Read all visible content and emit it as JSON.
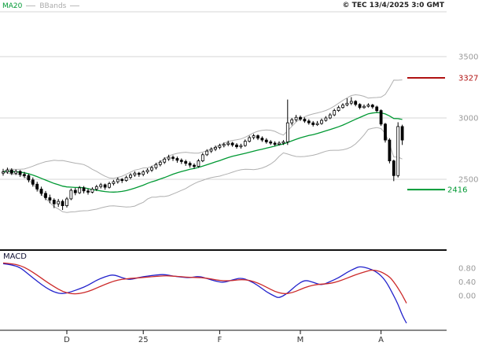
{
  "header": {
    "legend": {
      "ma20": "MA20",
      "bbands": "BBands"
    },
    "copyright": "© TEC 13/4/2025 3:0 GMT"
  },
  "colors": {
    "ma20": "#009933",
    "bbands": "#b0b0b0",
    "candle": "#000000",
    "grid": "#d6d6d6",
    "axis": "#111111",
    "tick_label": "#9a9a9a",
    "month_label": "#333333",
    "resistance": "#b01212",
    "support": "#009933",
    "macd_line": "#2222cc",
    "macd_signal": "#cc2929"
  },
  "chart_data": [
    {
      "type": "candlestick",
      "name": "price",
      "grid": true,
      "legend_position": "top-left",
      "y_ticks": [
        {
          "value": 3500,
          "label": "3500"
        },
        {
          "value": 3000,
          "label": "3000"
        },
        {
          "value": 2500,
          "label": "2500"
        }
      ],
      "x_labels": [
        {
          "label": "D",
          "index": 15
        },
        {
          "label": "25",
          "index": 33
        },
        {
          "label": "F",
          "index": 51
        },
        {
          "label": "M",
          "index": 70
        },
        {
          "label": "A",
          "index": 89
        }
      ],
      "levels": [
        {
          "name": "resistance",
          "value": 3327,
          "label": "3327",
          "color": "#b01212"
        },
        {
          "name": "support",
          "value": 2416,
          "label": "2416",
          "color": "#009933"
        }
      ],
      "overlays": [
        {
          "name": "MA20",
          "period": 20,
          "color": "#009933"
        },
        {
          "name": "BBands",
          "period": 20,
          "stdev_mult": 2,
          "color": "#b0b0b0"
        }
      ],
      "ohlc": [
        [
          2550,
          2585,
          2530,
          2560
        ],
        [
          2560,
          2595,
          2545,
          2575
        ],
        [
          2575,
          2590,
          2535,
          2550
        ],
        [
          2550,
          2580,
          2535,
          2565
        ],
        [
          2565,
          2575,
          2520,
          2540
        ],
        [
          2540,
          2560,
          2510,
          2530
        ],
        [
          2530,
          2545,
          2475,
          2495
        ],
        [
          2495,
          2515,
          2440,
          2460
        ],
        [
          2460,
          2480,
          2400,
          2420
        ],
        [
          2420,
          2440,
          2365,
          2385
        ],
        [
          2385,
          2405,
          2330,
          2350
        ],
        [
          2350,
          2375,
          2305,
          2330
        ],
        [
          2330,
          2345,
          2265,
          2300
        ],
        [
          2300,
          2340,
          2275,
          2320
        ],
        [
          2320,
          2335,
          2250,
          2285
        ],
        [
          2285,
          2355,
          2270,
          2340
        ],
        [
          2340,
          2425,
          2330,
          2410
        ],
        [
          2410,
          2430,
          2370,
          2390
        ],
        [
          2390,
          2445,
          2380,
          2430
        ],
        [
          2430,
          2445,
          2385,
          2405
        ],
        [
          2405,
          2425,
          2375,
          2395
        ],
        [
          2395,
          2435,
          2385,
          2420
        ],
        [
          2420,
          2455,
          2405,
          2440
        ],
        [
          2440,
          2470,
          2425,
          2455
        ],
        [
          2455,
          2465,
          2415,
          2435
        ],
        [
          2435,
          2480,
          2425,
          2465
        ],
        [
          2465,
          2495,
          2450,
          2480
        ],
        [
          2480,
          2515,
          2465,
          2500
        ],
        [
          2500,
          2510,
          2470,
          2490
        ],
        [
          2490,
          2530,
          2480,
          2515
        ],
        [
          2515,
          2550,
          2500,
          2535
        ],
        [
          2535,
          2565,
          2520,
          2550
        ],
        [
          2550,
          2560,
          2520,
          2540
        ],
        [
          2540,
          2575,
          2525,
          2560
        ],
        [
          2560,
          2590,
          2545,
          2575
        ],
        [
          2575,
          2610,
          2560,
          2595
        ],
        [
          2595,
          2635,
          2580,
          2620
        ],
        [
          2620,
          2655,
          2605,
          2640
        ],
        [
          2640,
          2680,
          2625,
          2665
        ],
        [
          2665,
          2700,
          2650,
          2680
        ],
        [
          2680,
          2695,
          2650,
          2670
        ],
        [
          2670,
          2685,
          2635,
          2655
        ],
        [
          2655,
          2670,
          2625,
          2645
        ],
        [
          2645,
          2660,
          2610,
          2630
        ],
        [
          2630,
          2645,
          2595,
          2615
        ],
        [
          2615,
          2630,
          2585,
          2605
        ],
        [
          2605,
          2665,
          2595,
          2650
        ],
        [
          2650,
          2715,
          2640,
          2700
        ],
        [
          2700,
          2745,
          2690,
          2730
        ],
        [
          2730,
          2760,
          2715,
          2745
        ],
        [
          2745,
          2775,
          2730,
          2760
        ],
        [
          2760,
          2790,
          2745,
          2775
        ],
        [
          2775,
          2800,
          2760,
          2785
        ],
        [
          2785,
          2815,
          2770,
          2795
        ],
        [
          2795,
          2805,
          2765,
          2780
        ],
        [
          2780,
          2795,
          2750,
          2765
        ],
        [
          2765,
          2790,
          2750,
          2775
        ],
        [
          2775,
          2825,
          2765,
          2810
        ],
        [
          2810,
          2855,
          2800,
          2840
        ],
        [
          2840,
          2870,
          2825,
          2855
        ],
        [
          2855,
          2865,
          2820,
          2835
        ],
        [
          2835,
          2850,
          2805,
          2820
        ],
        [
          2820,
          2835,
          2790,
          2805
        ],
        [
          2805,
          2820,
          2780,
          2795
        ],
        [
          2795,
          2810,
          2770,
          2785
        ],
        [
          2785,
          2810,
          2775,
          2795
        ],
        [
          2795,
          2820,
          2780,
          2805
        ],
        [
          2805,
          3150,
          2780,
          2960
        ],
        [
          2960,
          3000,
          2940,
          2985
        ],
        [
          2985,
          3025,
          2970,
          3005
        ],
        [
          3005,
          3020,
          2975,
          2990
        ],
        [
          2990,
          3005,
          2960,
          2975
        ],
        [
          2975,
          2990,
          2945,
          2960
        ],
        [
          2960,
          2975,
          2930,
          2945
        ],
        [
          2945,
          2975,
          2935,
          2955
        ],
        [
          2955,
          2995,
          2945,
          2980
        ],
        [
          2980,
          3015,
          2970,
          3000
        ],
        [
          3000,
          3040,
          2990,
          3025
        ],
        [
          3025,
          3075,
          3015,
          3060
        ],
        [
          3060,
          3100,
          3050,
          3085
        ],
        [
          3085,
          3120,
          3075,
          3105
        ],
        [
          3105,
          3160,
          3095,
          3120
        ],
        [
          3120,
          3170,
          3105,
          3135
        ],
        [
          3135,
          3145,
          3095,
          3110
        ],
        [
          3110,
          3120,
          3070,
          3085
        ],
        [
          3085,
          3110,
          3075,
          3095
        ],
        [
          3095,
          3120,
          3085,
          3105
        ],
        [
          3105,
          3115,
          3075,
          3090
        ],
        [
          3090,
          3100,
          3045,
          3060
        ],
        [
          3060,
          3070,
          2935,
          2950
        ],
        [
          2950,
          2960,
          2800,
          2820
        ],
        [
          2820,
          2835,
          2630,
          2650
        ],
        [
          2650,
          2660,
          2485,
          2530
        ],
        [
          2530,
          2965,
          2515,
          2930
        ],
        [
          2930,
          2945,
          2780,
          2820
        ]
      ]
    },
    {
      "type": "line",
      "name": "MACD",
      "grid": false,
      "y_ticks": [
        {
          "value": 0.8,
          "label": "0.80"
        },
        {
          "value": 0.4,
          "label": "0.40"
        },
        {
          "value": 0.0,
          "label": "0.00"
        }
      ],
      "series": [
        {
          "name": "MACD",
          "color": "#2222cc",
          "points": [
            [
              0,
              0.93
            ],
            [
              2,
              0.9
            ],
            [
              4,
              0.82
            ],
            [
              6,
              0.62
            ],
            [
              8,
              0.42
            ],
            [
              10,
              0.24
            ],
            [
              12,
              0.1
            ],
            [
              14,
              0.05
            ],
            [
              16,
              0.11
            ],
            [
              18,
              0.2
            ],
            [
              20,
              0.3
            ],
            [
              22,
              0.45
            ],
            [
              24,
              0.55
            ],
            [
              26,
              0.62
            ],
            [
              28,
              0.52
            ],
            [
              30,
              0.46
            ],
            [
              32,
              0.53
            ],
            [
              34,
              0.57
            ],
            [
              36,
              0.6
            ],
            [
              38,
              0.62
            ],
            [
              40,
              0.57
            ],
            [
              42,
              0.54
            ],
            [
              44,
              0.52
            ],
            [
              46,
              0.57
            ],
            [
              48,
              0.5
            ],
            [
              50,
              0.42
            ],
            [
              52,
              0.38
            ],
            [
              54,
              0.46
            ],
            [
              56,
              0.52
            ],
            [
              58,
              0.44
            ],
            [
              60,
              0.3
            ],
            [
              62,
              0.11
            ],
            [
              64,
              -0.02
            ],
            [
              65,
              -0.07
            ],
            [
              67,
              0.07
            ],
            [
              69,
              0.3
            ],
            [
              71,
              0.46
            ],
            [
              73,
              0.39
            ],
            [
              75,
              0.3
            ],
            [
              77,
              0.41
            ],
            [
              79,
              0.52
            ],
            [
              81,
              0.68
            ],
            [
              83,
              0.8
            ],
            [
              84,
              0.85
            ],
            [
              86,
              0.8
            ],
            [
              88,
              0.69
            ],
            [
              90,
              0.46
            ],
            [
              92,
              0.0
            ],
            [
              93,
              -0.25
            ],
            [
              94,
              -0.57
            ],
            [
              95,
              -0.8
            ]
          ]
        },
        {
          "name": "Signal",
          "color": "#cc2929",
          "points": [
            [
              0,
              0.95
            ],
            [
              2,
              0.93
            ],
            [
              4,
              0.88
            ],
            [
              6,
              0.76
            ],
            [
              8,
              0.6
            ],
            [
              10,
              0.42
            ],
            [
              12,
              0.26
            ],
            [
              14,
              0.12
            ],
            [
              16,
              0.05
            ],
            [
              18,
              0.06
            ],
            [
              20,
              0.12
            ],
            [
              22,
              0.22
            ],
            [
              24,
              0.33
            ],
            [
              26,
              0.42
            ],
            [
              28,
              0.48
            ],
            [
              30,
              0.5
            ],
            [
              32,
              0.52
            ],
            [
              34,
              0.54
            ],
            [
              36,
              0.56
            ],
            [
              38,
              0.58
            ],
            [
              40,
              0.57
            ],
            [
              42,
              0.55
            ],
            [
              44,
              0.53
            ],
            [
              46,
              0.53
            ],
            [
              48,
              0.51
            ],
            [
              50,
              0.46
            ],
            [
              52,
              0.43
            ],
            [
              54,
              0.44
            ],
            [
              56,
              0.47
            ],
            [
              58,
              0.45
            ],
            [
              60,
              0.37
            ],
            [
              62,
              0.25
            ],
            [
              64,
              0.12
            ],
            [
              66,
              0.05
            ],
            [
              68,
              0.08
            ],
            [
              70,
              0.18
            ],
            [
              72,
              0.28
            ],
            [
              74,
              0.33
            ],
            [
              76,
              0.34
            ],
            [
              78,
              0.38
            ],
            [
              80,
              0.46
            ],
            [
              82,
              0.56
            ],
            [
              84,
              0.65
            ],
            [
              86,
              0.72
            ],
            [
              87,
              0.75
            ],
            [
              89,
              0.7
            ],
            [
              91,
              0.55
            ],
            [
              92,
              0.4
            ],
            [
              93,
              0.22
            ],
            [
              94,
              0.02
            ],
            [
              95,
              -0.22
            ]
          ]
        }
      ]
    }
  ]
}
